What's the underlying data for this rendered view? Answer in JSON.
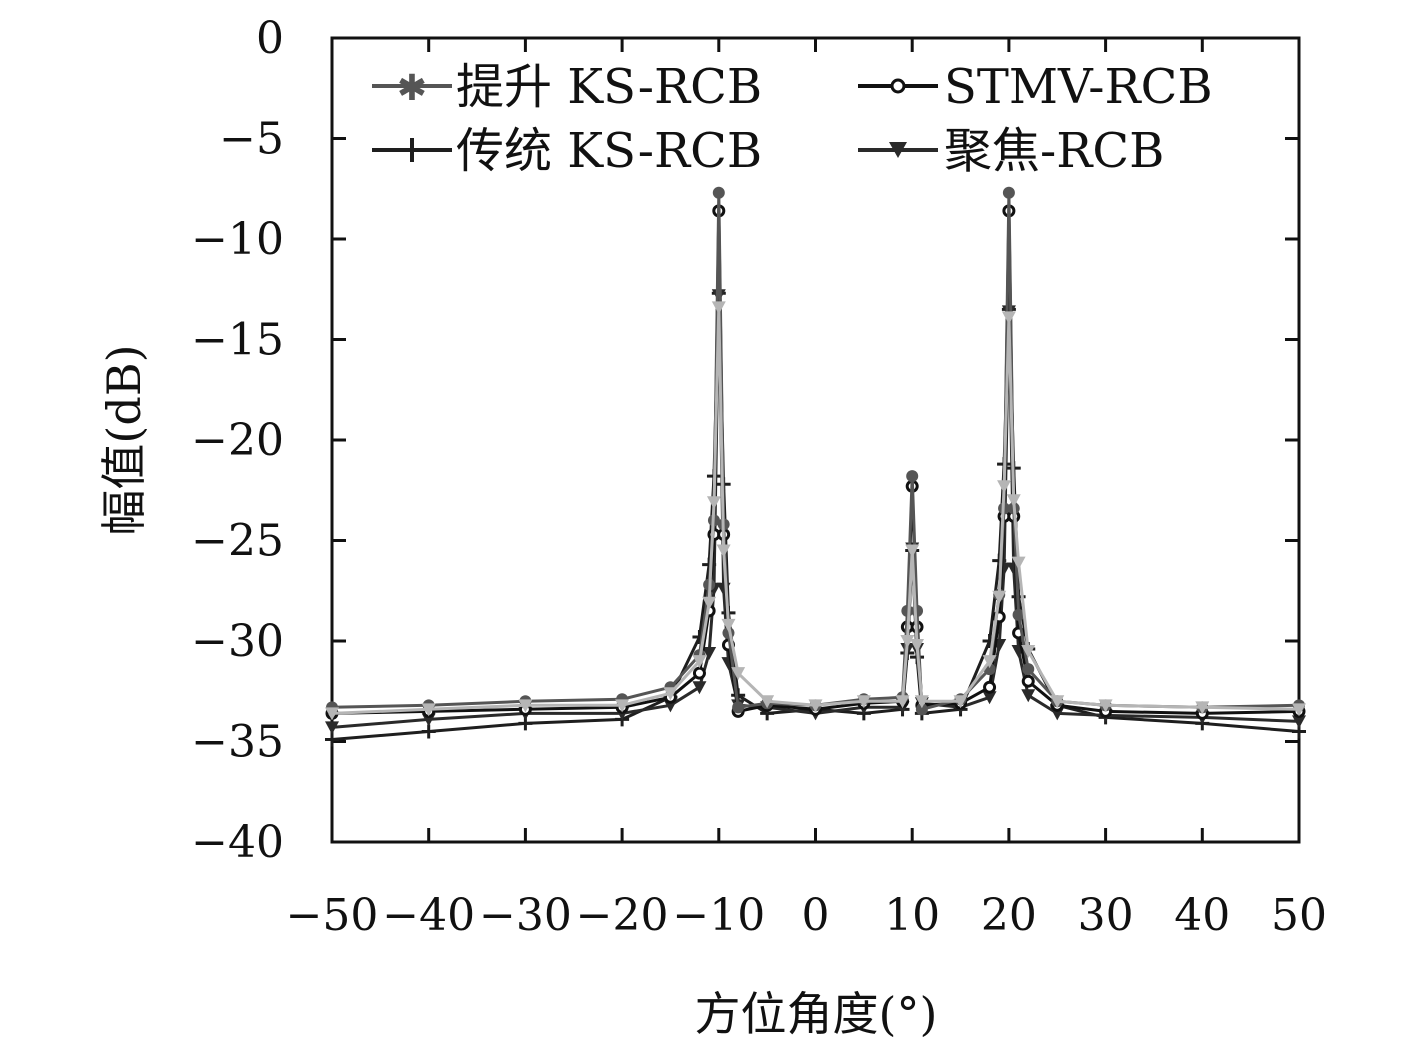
{
  "chart_data": {
    "type": "line",
    "xlabel": "方位角度(°)",
    "ylabel": "幅值(dB)",
    "xlim": [
      -50,
      50
    ],
    "ylim": [
      -40,
      0
    ],
    "xticks": [
      "−50",
      "−40",
      "−30",
      "−20",
      "−10",
      "0",
      "10",
      "20",
      "30",
      "40",
      "50"
    ],
    "yticks": [
      "0",
      "−5",
      "−10",
      "−15",
      "−20",
      "−25",
      "−30",
      "−35",
      "−40"
    ],
    "grid": false,
    "legend_position": "top",
    "series": [
      {
        "name": "提升 KS-RCB",
        "color": "#555555",
        "marker": "star",
        "x": [
          -50,
          -40,
          -30,
          -20,
          -15,
          -12,
          -11,
          -10.5,
          -10,
          -9.5,
          -9,
          -8,
          -5,
          0,
          5,
          9,
          9.5,
          10,
          10.5,
          11,
          15,
          18,
          19,
          19.5,
          20,
          20.5,
          21,
          22,
          25,
          30,
          40,
          50
        ],
        "y": [
          -33.3,
          -33.2,
          -33.0,
          -32.9,
          -32.3,
          -30.7,
          -27.2,
          -24.0,
          -7.7,
          -24.2,
          -29.6,
          -33.3,
          -33.1,
          -33.2,
          -32.9,
          -32.8,
          -28.5,
          -21.8,
          -28.5,
          -33.4,
          -32.9,
          -31.4,
          -27.7,
          -23.4,
          -7.7,
          -23.4,
          -28.7,
          -31.4,
          -33.0,
          -33.2,
          -33.3,
          -33.2
        ]
      },
      {
        "name": "STMV-RCB",
        "color": "#111111",
        "marker": "circle",
        "x": [
          -50,
          -40,
          -30,
          -20,
          -15,
          -12,
          -11,
          -10.5,
          -10,
          -9.5,
          -9,
          -8,
          -5,
          0,
          5,
          9,
          9.5,
          10,
          10.5,
          11,
          15,
          18,
          19,
          19.5,
          20,
          20.5,
          21,
          22,
          25,
          30,
          40,
          50
        ],
        "y": [
          -33.6,
          -33.5,
          -33.4,
          -33.3,
          -32.8,
          -31.6,
          -28.5,
          -24.7,
          -8.6,
          -24.7,
          -30.2,
          -33.5,
          -33.2,
          -33.4,
          -33.1,
          -33.0,
          -29.3,
          -22.3,
          -29.3,
          -33.2,
          -33.1,
          -32.3,
          -28.8,
          -23.8,
          -8.6,
          -23.8,
          -29.6,
          -32.0,
          -33.2,
          -33.5,
          -33.6,
          -33.5
        ]
      },
      {
        "name": "传统 KS-RCB",
        "color": "#1e1e1e",
        "marker": "plus",
        "x": [
          -50,
          -40,
          -30,
          -20,
          -15,
          -12,
          -11,
          -10.5,
          -10,
          -9.5,
          -9,
          -8,
          -5,
          0,
          5,
          9,
          9.5,
          10,
          10.5,
          11,
          15,
          18,
          19,
          19.5,
          20,
          20.5,
          21,
          22,
          25,
          30,
          40,
          50
        ],
        "y": [
          -34.9,
          -34.5,
          -34.1,
          -33.9,
          -32.8,
          -29.8,
          -26.2,
          -21.8,
          -12.7,
          -22.2,
          -28.6,
          -32.7,
          -33.6,
          -33.4,
          -33.6,
          -33.4,
          -30.6,
          -25.5,
          -30.8,
          -33.6,
          -33.4,
          -30.0,
          -26.0,
          -21.2,
          -13.5,
          -21.4,
          -27.8,
          -30.4,
          -33.2,
          -33.8,
          -34.1,
          -34.5
        ]
      },
      {
        "name": "聚焦-RCB",
        "color": "#2a2a2a",
        "marker": "triangle-down",
        "x": [
          -50,
          -40,
          -30,
          -20,
          -15,
          -12,
          -11,
          -10.5,
          -10,
          -9.5,
          -9,
          -8,
          -5,
          0,
          5,
          9,
          9.5,
          10,
          10.5,
          11,
          15,
          18,
          19,
          19.5,
          20,
          20.5,
          21,
          22,
          25,
          30,
          40,
          50
        ],
        "y": [
          -34.3,
          -33.9,
          -33.6,
          -33.6,
          -33.2,
          -32.3,
          -30.6,
          -27.4,
          -12.8,
          -27.4,
          -31.1,
          -33.2,
          -33.3,
          -33.6,
          -33.3,
          -33.3,
          -30.4,
          -25.4,
          -30.4,
          -33.1,
          -33.3,
          -32.8,
          -30.2,
          -26.4,
          -13.6,
          -26.4,
          -30.5,
          -32.7,
          -33.6,
          -33.7,
          -33.8,
          -34.0
        ]
      },
      {
        "name": "",
        "color": "#b5b5b5",
        "marker": "triangle-down",
        "x": [
          -50,
          -40,
          -30,
          -20,
          -15,
          -12,
          -11,
          -10.5,
          -10,
          -9.5,
          -9,
          -8,
          -5,
          0,
          5,
          9,
          9.5,
          10,
          10.5,
          11,
          15,
          18,
          19,
          19.5,
          20,
          20.5,
          21,
          22,
          25,
          30,
          40,
          50
        ],
        "y": [
          -33.6,
          -33.4,
          -33.2,
          -33.2,
          -32.6,
          -31.0,
          -28.1,
          -23.1,
          -13.4,
          -25.5,
          -29.2,
          -31.6,
          -33.0,
          -33.2,
          -33.0,
          -33.0,
          -30.0,
          -25.5,
          -30.2,
          -33.0,
          -33.0,
          -31.0,
          -27.8,
          -22.3,
          -13.9,
          -23.0,
          -26.1,
          -30.5,
          -33.0,
          -33.2,
          -33.3,
          -33.4
        ]
      }
    ]
  }
}
